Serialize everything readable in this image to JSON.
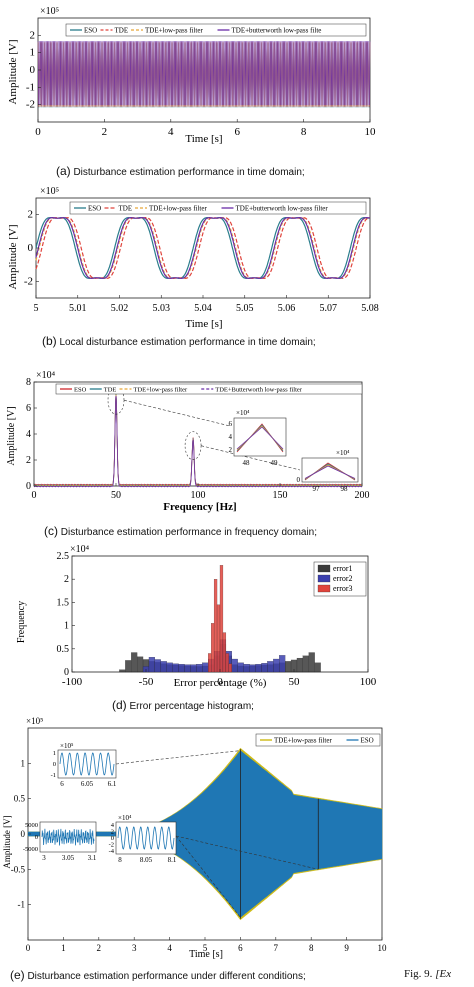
{
  "figure_caption": "Fig. 9.",
  "figure_caption_tail": "[Ex",
  "chart_data": [
    {
      "id": "a",
      "type": "line",
      "caption_label": "(a)",
      "caption": "Disturbance estimation performance in time domain;",
      "xlabel": "Time [s]",
      "ylabel": "Amplitude [V]",
      "exponent": "×10⁵",
      "xlim": [
        0,
        10
      ],
      "ylim": [
        -3,
        3
      ],
      "xticks": [
        "0",
        "2",
        "4",
        "6",
        "8",
        "10"
      ],
      "yticks": [
        "-2",
        "-1",
        "0",
        "1",
        "2"
      ],
      "legend": [
        "ESO",
        "TDE",
        "TDE+low-pass filter",
        "TDE+butterworth low-pass filte"
      ],
      "series_colors": [
        "#2a7d8c",
        "#e0443c",
        "#e8a83a",
        "#6a2da8"
      ],
      "envelope": [
        -2.1,
        1.6
      ]
    },
    {
      "id": "b",
      "type": "line",
      "caption_label": "(b)",
      "caption": "Local disturbance estimation performance in time domain;",
      "xlabel": "Time [s]",
      "ylabel": "Amplitude [V]",
      "exponent": "×10⁵",
      "xlim": [
        5,
        5.085
      ],
      "ylim": [
        -3,
        3
      ],
      "xticks": [
        "5",
        "5.01",
        "5.02",
        "5.03",
        "5.04",
        "5.05",
        "5.06",
        "5.07",
        "5.08"
      ],
      "yticks": [
        "-2",
        "0",
        "2"
      ],
      "legend": [
        "ESO",
        "TDE",
        "TDE+low-pass filter",
        "TDE+butterworth low-pass filter"
      ],
      "series_colors": [
        "#2a7d8c",
        "#e0443c",
        "#e8a83a",
        "#6a2da8"
      ],
      "frequency_hz": 50,
      "amplitude": 2.1
    },
    {
      "id": "c",
      "type": "line",
      "caption_label": "(c)",
      "caption": "Disturbance estimation performance in frequency domain;",
      "xlabel": "Frequency [Hz]",
      "ylabel": "Amplitude [V]",
      "exponent": "×10⁴",
      "xlim": [
        0,
        200
      ],
      "ylim": [
        0,
        8
      ],
      "xticks": [
        "0",
        "50",
        "100",
        "150",
        "200"
      ],
      "yticks": [
        "0",
        "2",
        "4",
        "6",
        "8"
      ],
      "legend": [
        "ESO",
        "TDE",
        "TDE+low-pass filter",
        "TDE+Butterworth low-pass filter"
      ],
      "series_colors": [
        "#d0282e",
        "#2a7d8c",
        "#e8a83a",
        "#6a2da8"
      ],
      "peaks": [
        {
          "x": 50,
          "y": 7.0
        },
        {
          "x": 97,
          "y": 3.6
        }
      ],
      "inset1": {
        "exponent": "×10⁴",
        "xticks": [
          "48",
          "49"
        ],
        "yticks": [
          "2",
          "4",
          "6"
        ]
      },
      "inset2": {
        "exponent": "×10⁴",
        "xticks": [
          "97",
          "98"
        ],
        "yticks": [
          "0"
        ]
      }
    },
    {
      "id": "d",
      "type": "bar",
      "caption_label": "(d)",
      "caption": "Error percentage histogram;",
      "xlabel": "Error percentage (%)",
      "ylabel": "Frequency",
      "exponent": "×10⁴",
      "xlim": [
        -100,
        100
      ],
      "ylim": [
        0,
        2.5
      ],
      "xticks": [
        "-100",
        "-50",
        "0",
        "50",
        "100"
      ],
      "yticks": [
        "0",
        "0.5",
        "1",
        "1.5",
        "2",
        "2.5"
      ],
      "legend": [
        "error1",
        "error2",
        "error3"
      ],
      "series_colors": [
        "#3a3a3a",
        "#3b3fae",
        "#e0443c"
      ],
      "series": [
        {
          "name": "error1",
          "x": [
            -68,
            -64,
            -60,
            -56,
            -52,
            -48,
            -44,
            -40,
            -36,
            -32,
            -28,
            -24,
            -20,
            -16,
            -12,
            -8,
            -4,
            0,
            4,
            8,
            12,
            16,
            20,
            24,
            28,
            32,
            36,
            40,
            44,
            48,
            52,
            56,
            60,
            64
          ],
          "values": [
            0.05,
            0.25,
            0.42,
            0.33,
            0.27,
            0.23,
            0.21,
            0.18,
            0.16,
            0.15,
            0.14,
            0.13,
            0.12,
            0.12,
            0.13,
            0.16,
            0.35,
            0.6,
            0.35,
            0.16,
            0.13,
            0.12,
            0.13,
            0.14,
            0.15,
            0.16,
            0.18,
            0.2,
            0.23,
            0.26,
            0.3,
            0.35,
            0.42,
            0.2
          ]
        },
        {
          "name": "error2",
          "x": [
            -52,
            -48,
            -44,
            -40,
            -36,
            -32,
            -28,
            -24,
            -20,
            -16,
            -12,
            -8,
            -4,
            0,
            4,
            8,
            12,
            16,
            20,
            24,
            28,
            32,
            36,
            40
          ],
          "values": [
            0.12,
            0.32,
            0.27,
            0.23,
            0.2,
            0.18,
            0.17,
            0.16,
            0.16,
            0.17,
            0.2,
            0.28,
            0.45,
            0.7,
            0.45,
            0.28,
            0.2,
            0.17,
            0.16,
            0.17,
            0.19,
            0.23,
            0.28,
            0.36
          ]
        },
        {
          "name": "error3",
          "x": [
            -8,
            -6,
            -4,
            -2,
            0,
            2,
            4,
            6
          ],
          "values": [
            0.4,
            1.05,
            2.0,
            1.45,
            2.3,
            0.85,
            0.4,
            0.18
          ]
        }
      ]
    },
    {
      "id": "e",
      "type": "line",
      "caption_label": "(e)",
      "caption": "Disturbance estimation performance under different conditions;",
      "xlabel": "Time [s]",
      "ylabel": "Amplitude [V]",
      "exponent": "×10⁵",
      "xlim": [
        0,
        10
      ],
      "ylim": [
        -1.5,
        1.5
      ],
      "xticks": [
        "0",
        "1",
        "2",
        "3",
        "4",
        "5",
        "6",
        "7",
        "8",
        "9",
        "10"
      ],
      "yticks": [
        "-1",
        "-0.5",
        "0",
        "0.5",
        "1"
      ],
      "legend": [
        "TDE+low-pass filter",
        "ESO"
      ],
      "series_colors": [
        "#c8b400",
        "#1f77b4"
      ],
      "inset1": {
        "exponent": "×10⁵",
        "xticks": [
          "6",
          "6.05",
          "6.1"
        ],
        "yticks": [
          "1",
          "0",
          "-1"
        ]
      },
      "inset2": {
        "exponent": "",
        "xticks": [
          "3",
          "3.05",
          "3.1"
        ],
        "yticks": [
          "5000",
          "0",
          "-5000"
        ]
      },
      "inset3": {
        "exponent": "×10⁴",
        "xticks": [
          "8",
          "8.05",
          "8.1"
        ],
        "yticks": [
          "4",
          "2",
          "0",
          "-2",
          "-4"
        ]
      }
    }
  ]
}
